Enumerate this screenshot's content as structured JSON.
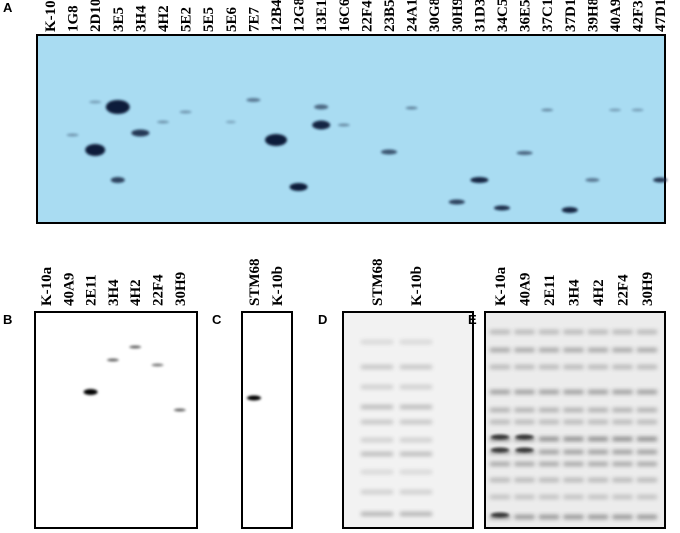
{
  "panels": [
    {
      "letter": "A",
      "lanes": [
        "K-10a",
        "1G8",
        "2D10",
        "3E5",
        "3H4",
        "4H2",
        "5E2",
        "5E5",
        "5E6",
        "7E7",
        "12B4",
        "12G8",
        "13E1",
        "16C6",
        "22F4",
        "23B5",
        "24A10",
        "30G8",
        "30H9",
        "31D3",
        "34C5",
        "36E5",
        "37C12",
        "37D1",
        "39H8",
        "40A9",
        "42F3",
        "47D1"
      ]
    },
    {
      "letter": "B",
      "lanes": [
        "K-10a",
        "40A9",
        "2E11",
        "3H4",
        "4H2",
        "22F4",
        "30H9"
      ]
    },
    {
      "letter": "C",
      "lanes": [
        "STM68",
        "K-10b"
      ]
    },
    {
      "letter": "D",
      "lanes": [
        "STM68",
        "K-10b"
      ]
    },
    {
      "letter": "E",
      "lanes": [
        "K-10a",
        "40A9",
        "2E11",
        "3H4",
        "4H2",
        "22F4",
        "30H9"
      ]
    }
  ]
}
